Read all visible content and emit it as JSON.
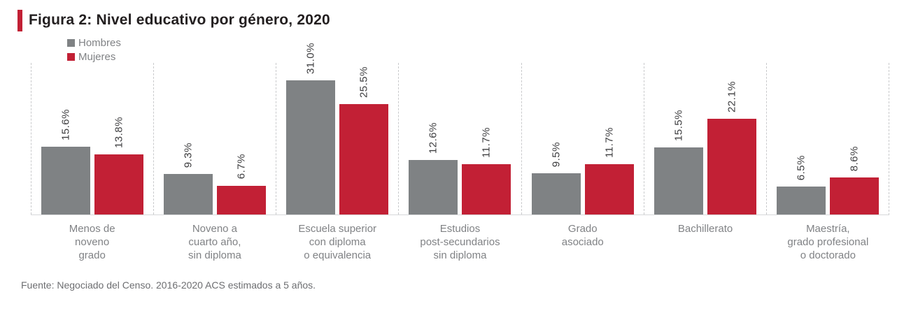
{
  "figure": {
    "title": "Figura 2: Nivel educativo por género, 2020",
    "source": "Fuente: Negociado del Censo. 2016-2020 ACS estimados a 5 años."
  },
  "colors": {
    "accent_red": "#C22035",
    "series_hombres_gray": "#7F8284",
    "series_mujeres_red": "#C22035",
    "title_text": "#231F20",
    "value_label_text": "#3D3D3F",
    "category_text": "#808285",
    "source_text": "#6D6E71",
    "group_separator": "#C9CACC",
    "baseline": "#D7D8D9"
  },
  "chart_data": {
    "type": "bar",
    "title": "Figura 2: Nivel educativo por género, 2020",
    "categories": [
      "Menos de\nnoveno\ngrado",
      "Noveno a\ncuarto año,\nsin diploma",
      "Escuela superior\ncon diploma\no equivalencia",
      "Estudios\npost-secundarios\nsin diploma",
      "Grado\nasociado",
      "Bachillerato",
      "Maestría,\ngrado profesional\no doctorado"
    ],
    "series": [
      {
        "name": "Hombres",
        "color": "#7F8284",
        "values": [
          15.6,
          9.3,
          31.0,
          12.6,
          9.5,
          15.5,
          6.5
        ]
      },
      {
        "name": "Mujeres",
        "color": "#C22035",
        "values": [
          13.8,
          6.7,
          25.5,
          11.7,
          11.7,
          22.1,
          8.6
        ]
      }
    ],
    "value_suffix": "%",
    "value_decimals": 1,
    "data_label_rotation": 90,
    "xlabel": "",
    "ylabel": "",
    "ylim": [
      0,
      35
    ],
    "grid": "vertical dashed separators between category groups",
    "legend_position": "top-left"
  }
}
